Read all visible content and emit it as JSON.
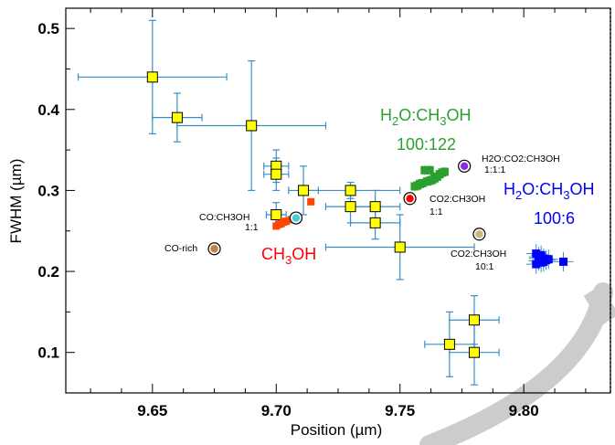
{
  "chart_data": {
    "type": "scatter",
    "xlabel": "Position (µm)",
    "ylabel": "FWHM (µm)",
    "xlim": [
      9.615,
      9.835
    ],
    "ylim": [
      0.05,
      0.525
    ],
    "x_ticks": [
      "9.65",
      "9.70",
      "9.75",
      "9.80"
    ],
    "x_tick_values": [
      9.65,
      9.7,
      9.75,
      9.8
    ],
    "y_ticks": [
      "0.1",
      "0.2",
      "0.3",
      "0.4",
      "0.5"
    ],
    "y_tick_values": [
      0.1,
      0.2,
      0.3,
      0.4,
      0.5
    ],
    "grid": false,
    "colors": {
      "yellow_marker": "#ffff00",
      "error_bar": "#3a8fc8",
      "green": "#2ca02c",
      "blue": "#0000ff",
      "red": "#ff0000",
      "orange": "#ff4500",
      "purple": "#8a2be2",
      "cyan": "#40d0d0",
      "brown": "#c87f3c",
      "khaki": "#c8b878",
      "watermark": "#cccccc"
    },
    "yellow_points": [
      {
        "x": 9.65,
        "y": 0.44,
        "xerr": 0.03,
        "yerr": 0.07
      },
      {
        "x": 9.66,
        "y": 0.39,
        "xerr": 0.01,
        "yerr": 0.03
      },
      {
        "x": 9.69,
        "y": 0.38,
        "xerr": 0.03,
        "yerr": 0.08
      },
      {
        "x": 9.7,
        "y": 0.33,
        "xerr": 0.005,
        "yerr": 0.02
      },
      {
        "x": 9.7,
        "y": 0.32,
        "xerr": 0.005,
        "yerr": 0.02
      },
      {
        "x": 9.7,
        "y": 0.27,
        "xerr": 0.004,
        "yerr": 0.015
      },
      {
        "x": 9.711,
        "y": 0.3,
        "xerr": 0.006,
        "yerr": 0.03
      },
      {
        "x": 9.73,
        "y": 0.3,
        "xerr": 0.02,
        "yerr": 0.01
      },
      {
        "x": 9.73,
        "y": 0.28,
        "xerr": 0.01,
        "yerr": 0.02
      },
      {
        "x": 9.74,
        "y": 0.28,
        "xerr": 0.01,
        "yerr": 0.02
      },
      {
        "x": 9.74,
        "y": 0.26,
        "xerr": 0.01,
        "yerr": 0.02
      },
      {
        "x": 9.75,
        "y": 0.23,
        "xerr": 0.03,
        "yerr": 0.04
      },
      {
        "x": 9.77,
        "y": 0.11,
        "xerr": 0.01,
        "yerr": 0.04
      },
      {
        "x": 9.78,
        "y": 0.14,
        "xerr": 0.01,
        "yerr": 0.03
      },
      {
        "x": 9.78,
        "y": 0.1,
        "xerr": 0.01,
        "yerr": 0.04
      }
    ],
    "green_points": [
      {
        "x": 9.76,
        "y": 0.325
      },
      {
        "x": 9.762,
        "y": 0.325
      },
      {
        "x": 9.756,
        "y": 0.305
      },
      {
        "x": 9.757,
        "y": 0.306
      },
      {
        "x": 9.758,
        "y": 0.308
      },
      {
        "x": 9.759,
        "y": 0.309
      },
      {
        "x": 9.761,
        "y": 0.311
      },
      {
        "x": 9.762,
        "y": 0.312
      },
      {
        "x": 9.763,
        "y": 0.313
      },
      {
        "x": 9.764,
        "y": 0.315
      },
      {
        "x": 9.765,
        "y": 0.317
      },
      {
        "x": 9.766,
        "y": 0.32
      },
      {
        "x": 9.767,
        "y": 0.322
      },
      {
        "x": 9.768,
        "y": 0.323
      }
    ],
    "blue_points": [
      {
        "x": 9.805,
        "y": 0.222
      },
      {
        "x": 9.806,
        "y": 0.218
      },
      {
        "x": 9.807,
        "y": 0.22
      },
      {
        "x": 9.806,
        "y": 0.213
      },
      {
        "x": 9.808,
        "y": 0.216
      },
      {
        "x": 9.805,
        "y": 0.209
      },
      {
        "x": 9.807,
        "y": 0.211
      },
      {
        "x": 9.809,
        "y": 0.214
      },
      {
        "x": 9.81,
        "y": 0.215
      },
      {
        "x": 9.806,
        "y": 0.216
      },
      {
        "x": 9.808,
        "y": 0.212
      },
      {
        "x": 9.816,
        "y": 0.212
      }
    ],
    "orange_points": [
      {
        "x": 9.7,
        "y": 0.256
      },
      {
        "x": 9.701,
        "y": 0.258
      },
      {
        "x": 9.702,
        "y": 0.259
      },
      {
        "x": 9.703,
        "y": 0.261
      },
      {
        "x": 9.704,
        "y": 0.262
      },
      {
        "x": 9.706,
        "y": 0.264
      },
      {
        "x": 9.714,
        "y": 0.286
      }
    ],
    "circle_points": [
      {
        "x": 9.675,
        "y": 0.228,
        "color": "#c87f3c",
        "label": "CO-rich"
      },
      {
        "x": 9.708,
        "y": 0.266,
        "color": "#40d0d0",
        "label": "CO:CH3OH 1:1"
      },
      {
        "x": 9.754,
        "y": 0.29,
        "color": "#ff0000",
        "label": "CO2:CH3OH 1:1"
      },
      {
        "x": 9.776,
        "y": 0.33,
        "color": "#8a2be2",
        "label": "H2O:CO2:CH3OH 1:1:1"
      },
      {
        "x": 9.782,
        "y": 0.246,
        "color": "#c8b878",
        "label": "CO2:CH3OH 10:1"
      }
    ],
    "annotations": {
      "co_rich": "CO-rich",
      "co_ch3oh_1": "CO:CH3OH",
      "co_ch3oh_2": "1:1",
      "co2_ch3oh_a1": "CO2:CH3OH",
      "co2_ch3oh_a2": "1:1",
      "h2o_co2_1": "H2O:CO2:CH3OH",
      "h2o_co2_2": "1:1:1",
      "co2_ch3oh_b1": "CO2:CH3OH",
      "co2_ch3oh_b2": "10:1",
      "green_line1_parts": [
        "H",
        "2",
        "O:CH",
        "3",
        "OH"
      ],
      "green_line2": "100:122",
      "blue_line1_parts": [
        "H",
        "2",
        "O:CH",
        "3",
        "OH"
      ],
      "blue_line2": "100:6",
      "red_parts": [
        "CH",
        "3",
        "OH"
      ]
    }
  }
}
